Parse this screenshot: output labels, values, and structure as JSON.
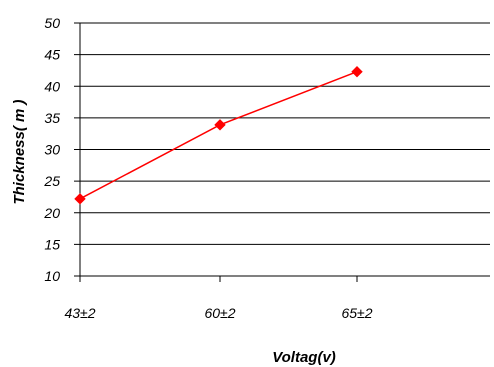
{
  "chart_data": {
    "type": "line",
    "title": "",
    "xlabel": "Voltag(v)",
    "ylabel": "Thickness( m )",
    "categories": [
      "43±2",
      "60±2",
      "65±2"
    ],
    "series": [
      {
        "values": [
          22.2,
          33.9,
          42.3
        ],
        "color": "#ff0000",
        "marker": "diamond"
      }
    ],
    "ylim": [
      10,
      50
    ],
    "yticks": [
      10,
      15,
      20,
      25,
      30,
      35,
      40,
      45,
      50
    ],
    "grid": "horizontal",
    "legend": "none"
  }
}
